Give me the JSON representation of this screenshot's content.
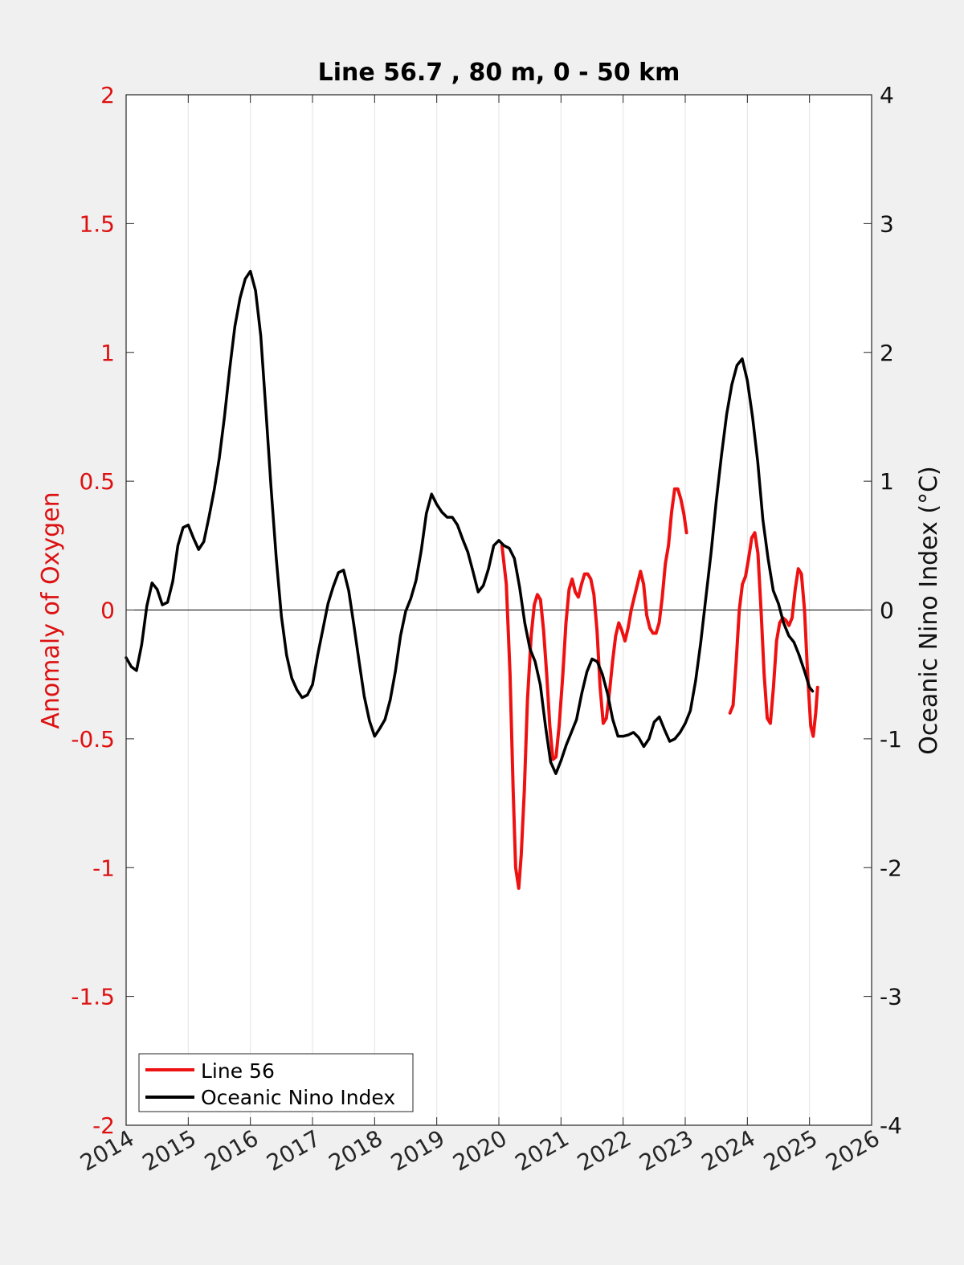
{
  "chart_data": {
    "type": "line",
    "title": "Line 56.7 , 80 m, 0 - 50 km",
    "xlabel": "",
    "ylabel_left": "Anomaly of Oxygen",
    "ylabel_right": "Oceanic Nino Index (°C)",
    "xlim": [
      2014,
      2026
    ],
    "ylim_left": [
      -2,
      2
    ],
    "ylim_right": [
      -4,
      4
    ],
    "x_ticks": [
      2014,
      2015,
      2016,
      2017,
      2018,
      2019,
      2020,
      2021,
      2022,
      2023,
      2024,
      2025,
      2026
    ],
    "x_tick_labels": [
      "2014",
      "2015",
      "2016",
      "2017",
      "2018",
      "2019",
      "2020",
      "2021",
      "2022",
      "2023",
      "2024",
      "2025",
      "2026"
    ],
    "y_left_ticks": [
      -2,
      -1.5,
      -1,
      -0.5,
      0,
      0.5,
      1,
      1.5,
      2
    ],
    "y_left_tick_labels": [
      "-2",
      "-1.5",
      "-1",
      "-0.5",
      "0",
      "0.5",
      "1",
      "1.5",
      "2"
    ],
    "y_right_ticks": [
      -4,
      -3,
      -2,
      -1,
      0,
      1,
      2,
      3,
      4
    ],
    "y_right_tick_labels": [
      "-4",
      "-3",
      "-2",
      "-1",
      "0",
      "1",
      "2",
      "3",
      "4"
    ],
    "grid": "vertical",
    "zero_line": true,
    "legend_position": "bottom-left",
    "colors": {
      "line56": "#ee1111",
      "oni": "#000000",
      "left_axis": "#dd1111",
      "right_axis": "#111111"
    },
    "series": [
      {
        "name": "Line 56",
        "axis": "left",
        "color": "#ee1111",
        "segments": [
          [
            [
              2020.05,
              0.25
            ],
            [
              2020.12,
              0.1
            ],
            [
              2020.18,
              -0.25
            ],
            [
              2020.23,
              -0.7
            ],
            [
              2020.27,
              -1.0
            ],
            [
              2020.32,
              -1.08
            ],
            [
              2020.36,
              -0.95
            ],
            [
              2020.41,
              -0.7
            ],
            [
              2020.46,
              -0.35
            ],
            [
              2020.52,
              -0.1
            ],
            [
              2020.57,
              0.02
            ],
            [
              2020.62,
              0.06
            ],
            [
              2020.67,
              0.04
            ],
            [
              2020.72,
              -0.08
            ],
            [
              2020.77,
              -0.25
            ],
            [
              2020.82,
              -0.45
            ],
            [
              2020.87,
              -0.58
            ],
            [
              2020.92,
              -0.57
            ],
            [
              2020.97,
              -0.45
            ],
            [
              2021.03,
              -0.25
            ],
            [
              2021.08,
              -0.05
            ],
            [
              2021.13,
              0.08
            ],
            [
              2021.18,
              0.12
            ],
            [
              2021.23,
              0.07
            ],
            [
              2021.28,
              0.05
            ],
            [
              2021.33,
              0.1
            ],
            [
              2021.38,
              0.14
            ],
            [
              2021.43,
              0.14
            ],
            [
              2021.48,
              0.12
            ],
            [
              2021.53,
              0.06
            ],
            [
              2021.58,
              -0.08
            ],
            [
              2021.63,
              -0.3
            ],
            [
              2021.68,
              -0.44
            ],
            [
              2021.73,
              -0.42
            ],
            [
              2021.78,
              -0.32
            ],
            [
              2021.83,
              -0.2
            ],
            [
              2021.88,
              -0.1
            ],
            [
              2021.93,
              -0.05
            ],
            [
              2021.98,
              -0.08
            ],
            [
              2022.03,
              -0.12
            ],
            [
              2022.08,
              -0.07
            ],
            [
              2022.13,
              0.0
            ],
            [
              2022.18,
              0.05
            ],
            [
              2022.23,
              0.1
            ],
            [
              2022.28,
              0.15
            ],
            [
              2022.33,
              0.1
            ],
            [
              2022.38,
              -0.02
            ],
            [
              2022.43,
              -0.07
            ],
            [
              2022.48,
              -0.09
            ],
            [
              2022.53,
              -0.09
            ],
            [
              2022.58,
              -0.05
            ],
            [
              2022.63,
              0.05
            ],
            [
              2022.68,
              0.18
            ],
            [
              2022.73,
              0.25
            ],
            [
              2022.78,
              0.38
            ],
            [
              2022.83,
              0.47
            ],
            [
              2022.88,
              0.47
            ],
            [
              2022.93,
              0.43
            ],
            [
              2022.98,
              0.37
            ],
            [
              2023.02,
              0.3
            ]
          ],
          [
            [
              2023.72,
              -0.4
            ],
            [
              2023.77,
              -0.37
            ],
            [
              2023.82,
              -0.2
            ],
            [
              2023.87,
              0.0
            ],
            [
              2023.92,
              0.1
            ],
            [
              2023.97,
              0.13
            ],
            [
              2024.02,
              0.2
            ],
            [
              2024.07,
              0.28
            ],
            [
              2024.12,
              0.3
            ],
            [
              2024.17,
              0.22
            ],
            [
              2024.22,
              0.0
            ],
            [
              2024.27,
              -0.25
            ],
            [
              2024.32,
              -0.42
            ],
            [
              2024.37,
              -0.44
            ],
            [
              2024.42,
              -0.3
            ],
            [
              2024.47,
              -0.12
            ],
            [
              2024.52,
              -0.05
            ],
            [
              2024.57,
              -0.03
            ],
            [
              2024.62,
              -0.04
            ],
            [
              2024.67,
              -0.06
            ],
            [
              2024.72,
              -0.03
            ],
            [
              2024.77,
              0.08
            ],
            [
              2024.82,
              0.16
            ],
            [
              2024.87,
              0.14
            ],
            [
              2024.92,
              0.0
            ],
            [
              2024.97,
              -0.25
            ],
            [
              2025.02,
              -0.45
            ],
            [
              2025.06,
              -0.49
            ],
            [
              2025.1,
              -0.4
            ],
            [
              2025.13,
              -0.3
            ]
          ]
        ]
      },
      {
        "name": "Oceanic Nino Index",
        "axis": "right",
        "color": "#000000",
        "x": [
          2014.0,
          2014.083,
          2014.167,
          2014.25,
          2014.333,
          2014.417,
          2014.5,
          2014.583,
          2014.667,
          2014.75,
          2014.833,
          2014.917,
          2015.0,
          2015.083,
          2015.167,
          2015.25,
          2015.333,
          2015.417,
          2015.5,
          2015.583,
          2015.667,
          2015.75,
          2015.833,
          2015.917,
          2016.0,
          2016.083,
          2016.167,
          2016.25,
          2016.333,
          2016.417,
          2016.5,
          2016.583,
          2016.667,
          2016.75,
          2016.833,
          2016.917,
          2017.0,
          2017.083,
          2017.167,
          2017.25,
          2017.333,
          2017.417,
          2017.5,
          2017.583,
          2017.667,
          2017.75,
          2017.833,
          2017.917,
          2018.0,
          2018.083,
          2018.167,
          2018.25,
          2018.333,
          2018.417,
          2018.5,
          2018.583,
          2018.667,
          2018.75,
          2018.833,
          2018.917,
          2019.0,
          2019.083,
          2019.167,
          2019.25,
          2019.333,
          2019.417,
          2019.5,
          2019.583,
          2019.667,
          2019.75,
          2019.833,
          2019.917,
          2020.0,
          2020.083,
          2020.167,
          2020.25,
          2020.333,
          2020.417,
          2020.5,
          2020.583,
          2020.667,
          2020.75,
          2020.833,
          2020.917,
          2021.0,
          2021.083,
          2021.167,
          2021.25,
          2021.333,
          2021.417,
          2021.5,
          2021.583,
          2021.667,
          2021.75,
          2021.833,
          2021.917,
          2022.0,
          2022.083,
          2022.167,
          2022.25,
          2022.333,
          2022.417,
          2022.5,
          2022.583,
          2022.667,
          2022.75,
          2022.833,
          2022.917,
          2023.0,
          2023.083,
          2023.167,
          2023.25,
          2023.333,
          2023.417,
          2023.5,
          2023.583,
          2023.667,
          2023.75,
          2023.833,
          2023.917,
          2024.0,
          2024.083,
          2024.167,
          2024.25,
          2024.333,
          2024.417,
          2024.5,
          2024.583,
          2024.667,
          2024.75,
          2024.833,
          2024.917,
          2025.0,
          2025.05
        ],
        "values": [
          -0.37,
          -0.44,
          -0.47,
          -0.27,
          0.03,
          0.21,
          0.16,
          0.04,
          0.06,
          0.22,
          0.5,
          0.64,
          0.66,
          0.56,
          0.47,
          0.53,
          0.72,
          0.93,
          1.18,
          1.5,
          1.87,
          2.2,
          2.42,
          2.57,
          2.63,
          2.48,
          2.13,
          1.55,
          0.95,
          0.4,
          -0.05,
          -0.35,
          -0.53,
          -0.62,
          -0.68,
          -0.66,
          -0.58,
          -0.35,
          -0.15,
          0.05,
          0.18,
          0.29,
          0.31,
          0.15,
          -0.12,
          -0.4,
          -0.67,
          -0.86,
          -0.98,
          -0.92,
          -0.85,
          -0.7,
          -0.48,
          -0.2,
          -0.01,
          0.09,
          0.23,
          0.46,
          0.75,
          0.9,
          0.82,
          0.76,
          0.72,
          0.72,
          0.66,
          0.55,
          0.45,
          0.3,
          0.14,
          0.19,
          0.32,
          0.5,
          0.54,
          0.5,
          0.48,
          0.4,
          0.18,
          -0.1,
          -0.3,
          -0.4,
          -0.58,
          -0.9,
          -1.18,
          -1.27,
          -1.17,
          -1.05,
          -0.95,
          -0.85,
          -0.65,
          -0.48,
          -0.38,
          -0.4,
          -0.5,
          -0.65,
          -0.85,
          -0.98,
          -0.98,
          -0.97,
          -0.95,
          -0.99,
          -1.06,
          -1.0,
          -0.87,
          -0.83,
          -0.93,
          -1.02,
          -1.0,
          -0.95,
          -0.88,
          -0.78,
          -0.55,
          -0.25,
          0.1,
          0.45,
          0.85,
          1.2,
          1.52,
          1.75,
          1.9,
          1.95,
          1.78,
          1.5,
          1.15,
          0.7,
          0.4,
          0.15,
          0.05,
          -0.1,
          -0.2,
          -0.25,
          -0.35,
          -0.47,
          -0.6,
          -0.63
        ]
      }
    ]
  },
  "legend": {
    "items": [
      {
        "label": "Line 56",
        "color": "#ee1111"
      },
      {
        "label": "Oceanic Nino Index",
        "color": "#000000"
      }
    ]
  }
}
